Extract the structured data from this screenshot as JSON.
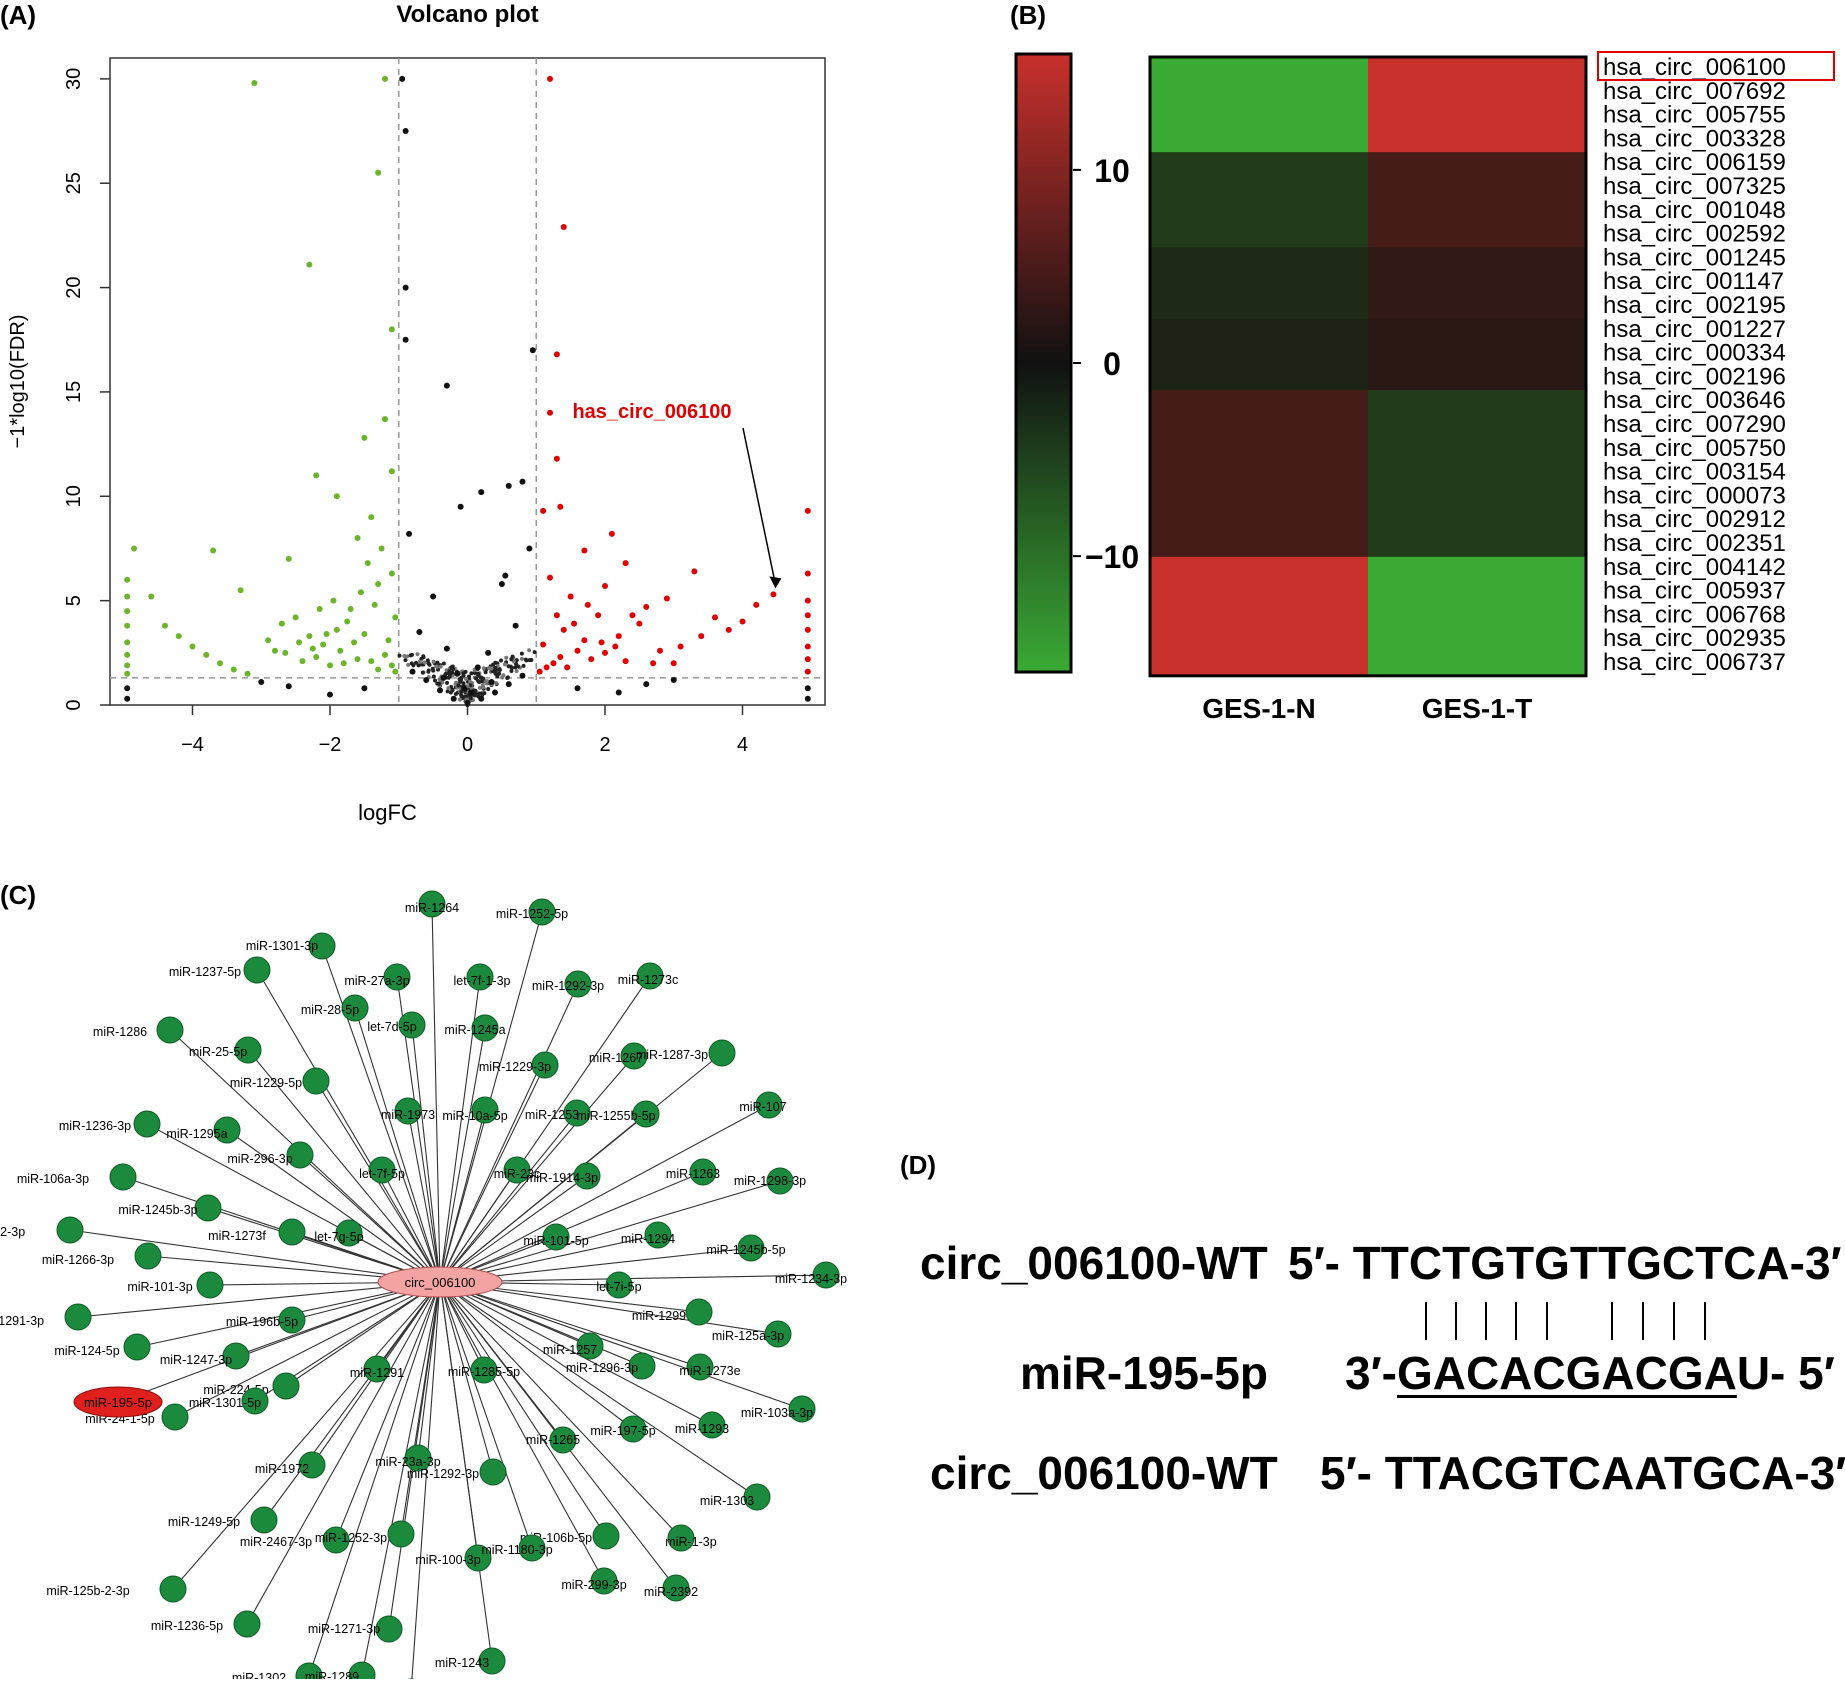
{
  "panels": {
    "a": {
      "label": "(A)",
      "title": "Volcano plot",
      "xlabel": "logFC",
      "ylabel": "−1*log10(FDR)",
      "xticks": [
        "−4",
        "−2",
        "0",
        "2",
        "4"
      ],
      "yticks": [
        "0",
        "5",
        "10",
        "15",
        "20",
        "25",
        "30"
      ],
      "annotation": "has_circ_006100"
    },
    "b": {
      "label": "(B)",
      "scale_ticks": [
        "10",
        "0",
        "−10"
      ],
      "columns": [
        "GES-1-N",
        "GES-1-T"
      ],
      "rows": [
        "hsa_circ_006100",
        "hsa_circ_007692",
        "hsa_circ_005755",
        "hsa_circ_003328",
        "hsa_circ_006159",
        "hsa_circ_007325",
        "hsa_circ_001048",
        "hsa_circ_002592",
        "hsa_circ_001245",
        "hsa_circ_001147",
        "hsa_circ_002195",
        "hsa_circ_001227",
        "hsa_circ_000334",
        "hsa_circ_002196",
        "hsa_circ_003646",
        "hsa_circ_007290",
        "hsa_circ_005750",
        "hsa_circ_003154",
        "hsa_circ_000073",
        "hsa_circ_002912",
        "hsa_circ_002351",
        "hsa_circ_004142",
        "hsa_circ_005937",
        "hsa_circ_006768",
        "hsa_circ_002935",
        "hsa_circ_006737"
      ]
    },
    "c": {
      "label": "(C)",
      "center": "circ_006100",
      "highlight": "miR-195-5p",
      "nodes": [
        "miR-1264",
        "miR-1252-5p",
        "miR-1301-3p",
        "miR-1237-5p",
        "miR-27a-3p",
        "let-7f-1-3p",
        "miR-1292-3p",
        "miR-1273c",
        "miR-28-5p",
        "miR-1286",
        "let-7d-5p",
        "miR-1245a",
        "miR-25-5p",
        "miR-1267",
        "miR-1287-3p",
        "miR-1229-3p",
        "miR-1229-5p",
        "miR-1973",
        "miR-10a-5p",
        "miR-1253",
        "miR-1255b-5p",
        "miR-107",
        "miR-1236-3p",
        "miR-1295a",
        "miR-296-3p",
        "let-7f-5p",
        "miR-23c",
        "miR-1914-3p",
        "miR-1263",
        "miR-106a-3p",
        "miR-1298-3p",
        "miR-1245b-3p",
        "miR-1255b-2-3p",
        "miR-1273f",
        "let-7g-5p",
        "miR-101-5p",
        "miR-1294",
        "miR-1245b-5p",
        "miR-1266-3p",
        "miR-101-3p",
        "let-7i-5p",
        "miR-1234-3p",
        "miR-1299",
        "miR-1291-3p",
        "miR-196b-5p",
        "miR-125a-3p",
        "miR-124-5p",
        "miR-1247-3p",
        "miR-1257",
        "miR-1296-3p",
        "miR-1273e",
        "miR-224-5p",
        "miR-1291",
        "miR-1285-5p",
        "miR-103a-3p",
        "miR-24-1-5p",
        "miR-1301-5p",
        "miR-197-5p",
        "miR-1293",
        "miR-1972",
        "miR-23a-3p",
        "miR-1292-3p",
        "miR-1265",
        "miR-1249-5p",
        "miR-2467-3p",
        "miR-1252-3p",
        "miR-106b-5p",
        "miR-1-3p",
        "miR-1303",
        "miR-125b-2-3p",
        "miR-100-3p",
        "miR-1180-3p",
        "miR-299-3p",
        "miR-2392",
        "miR-1236-5p",
        "miR-1271-3p",
        "miR-1302",
        "miR-1243",
        "miR-1251-5p",
        "miR-1289"
      ]
    },
    "d": {
      "label": "(D)",
      "row1_name": "circ_006100-WT",
      "row1_seq": "5′- TTCTGTGTTGCTCA-3′",
      "row2_name": "miR-195-5p",
      "row2_prefix": "3′-",
      "row2_underlined": "GACACGACGA",
      "row2_suffix": "U- 5′",
      "row3_name": "circ_006100-WT",
      "row3_seq": "5′- TTACGTCAATGCA-3′"
    }
  },
  "colors": {
    "up": "#e00000",
    "down": "#6cb42a",
    "ns": "#111111",
    "heat_red": "#c8302c",
    "heat_green": "#3aaa35",
    "node_green": "#1b8a3c",
    "center_fill": "#f4a3a3",
    "highlight_fill": "#e0201c",
    "box_red": "#e00000"
  },
  "chart_data": [
    {
      "type": "scatter",
      "title": "Volcano plot",
      "xlabel": "logFC",
      "ylabel": "−1*log10(FDR)",
      "xlim": [
        -5.2,
        5.2
      ],
      "ylim": [
        0,
        31
      ],
      "thresholds": {
        "logFC": [
          -1,
          1
        ],
        "neg_log10_fdr": 1.3
      },
      "series": [
        {
          "color": "#6cb42a",
          "points": [
            [
              -3.1,
              29.8
            ],
            [
              -1.2,
              30
            ],
            [
              -1.3,
              25.5
            ],
            [
              -2.3,
              21.1
            ],
            [
              -1.1,
              18
            ],
            [
              -1.2,
              13.7
            ],
            [
              -1.5,
              12.8
            ],
            [
              -2.2,
              11
            ],
            [
              -1.1,
              11.2
            ],
            [
              -1.9,
              10
            ],
            [
              -1.4,
              9
            ],
            [
              -1.6,
              8
            ],
            [
              -3.7,
              7.4
            ],
            [
              -4.85,
              7.5
            ],
            [
              -3.3,
              5.5
            ],
            [
              -2.6,
              7
            ],
            [
              -4.6,
              5.2
            ],
            [
              -4.4,
              3.8
            ],
            [
              -4.2,
              3.3
            ],
            [
              -4.0,
              2.8
            ],
            [
              -3.8,
              2.4
            ],
            [
              -3.6,
              2.0
            ],
            [
              -3.4,
              1.7
            ],
            [
              -3.2,
              1.5
            ],
            [
              -2.9,
              3.1
            ],
            [
              -2.7,
              3.9
            ],
            [
              -2.5,
              4.2
            ],
            [
              -2.3,
              3.3
            ],
            [
              -2.1,
              2.9
            ],
            [
              -1.9,
              3.6
            ],
            [
              -1.7,
              4.6
            ],
            [
              -1.5,
              3.4
            ],
            [
              -1.3,
              5.8
            ],
            [
              -1.1,
              6.3
            ],
            [
              -1.05,
              4.2
            ],
            [
              -1.2,
              2.4
            ],
            [
              -1.4,
              2.1
            ],
            [
              -1.6,
              2.2
            ],
            [
              -1.8,
              2.0
            ],
            [
              -2.0,
              1.9
            ],
            [
              -2.2,
              2.3
            ],
            [
              -2.4,
              2.1
            ],
            [
              -2.8,
              2.6
            ],
            [
              -1.15,
              3.1
            ],
            [
              -1.35,
              4.8
            ],
            [
              -1.55,
              5.4
            ],
            [
              -1.75,
              4.0
            ],
            [
              -1.95,
              5.0
            ],
            [
              -2.15,
              4.6
            ],
            [
              -1.25,
              7.5
            ],
            [
              -1.45,
              6.8
            ],
            [
              -1.65,
              3.0
            ],
            [
              -1.85,
              2.6
            ],
            [
              -2.05,
              3.4
            ],
            [
              -2.25,
              2.7
            ],
            [
              -2.45,
              3.0
            ],
            [
              -2.65,
              2.5
            ],
            [
              -1.05,
              1.6
            ],
            [
              -1.1,
              1.9
            ],
            [
              -1.3,
              1.7
            ],
            [
              -4.95,
              6.0
            ],
            [
              -4.95,
              5.2
            ],
            [
              -4.95,
              4.5
            ],
            [
              -4.95,
              3.8
            ],
            [
              -4.95,
              3.0
            ],
            [
              -4.95,
              2.4
            ],
            [
              -4.95,
              1.9
            ],
            [
              -4.95,
              1.5
            ]
          ]
        },
        {
          "color": "#e00000",
          "points": [
            [
              1.2,
              30
            ],
            [
              1.4,
              22.9
            ],
            [
              1.3,
              16.8
            ],
            [
              1.2,
              14
            ],
            [
              1.3,
              11.8
            ],
            [
              1.1,
              9.3
            ],
            [
              1.35,
              9.5
            ],
            [
              4.95,
              9.3
            ],
            [
              4.95,
              6.3
            ],
            [
              4.95,
              5.0
            ],
            [
              4.95,
              4.3
            ],
            [
              4.95,
              3.6
            ],
            [
              4.95,
              2.8
            ],
            [
              4.95,
              2.2
            ],
            [
              4.95,
              1.6
            ],
            [
              4.45,
              5.3
            ],
            [
              3.3,
              6.4
            ],
            [
              2.1,
              8.2
            ],
            [
              1.7,
              7.4
            ],
            [
              2.3,
              6.8
            ],
            [
              2.0,
              5.7
            ],
            [
              2.9,
              5.1
            ],
            [
              2.6,
              4.7
            ],
            [
              3.6,
              4.2
            ],
            [
              4.0,
              4.0
            ],
            [
              4.2,
              4.8
            ],
            [
              3.8,
              3.6
            ],
            [
              3.4,
              3.3
            ],
            [
              3.1,
              2.8
            ],
            [
              2.8,
              2.6
            ],
            [
              2.5,
              3.9
            ],
            [
              2.2,
              3.3
            ],
            [
              1.9,
              4.3
            ],
            [
              1.7,
              3.1
            ],
            [
              1.5,
              5.2
            ],
            [
              1.3,
              4.3
            ],
            [
              1.1,
              2.9
            ],
            [
              1.2,
              6.1
            ],
            [
              1.4,
              3.6
            ],
            [
              1.6,
              2.6
            ],
            [
              1.8,
              2.2
            ],
            [
              2.0,
              2.5
            ],
            [
              2.3,
              2.1
            ],
            [
              2.7,
              2.0
            ],
            [
              3.0,
              2.0
            ],
            [
              1.15,
              1.8
            ],
            [
              1.35,
              2.3
            ],
            [
              1.55,
              3.9
            ],
            [
              1.75,
              4.8
            ],
            [
              1.95,
              3.0
            ],
            [
              2.15,
              2.8
            ],
            [
              2.4,
              4.3
            ],
            [
              1.05,
              1.6
            ],
            [
              1.25,
              2.0
            ],
            [
              1.45,
              1.8
            ]
          ]
        },
        {
          "color": "#111111",
          "points": [
            [
              0,
              0.1
            ],
            [
              0.2,
              0.3
            ],
            [
              -0.2,
              0.3
            ],
            [
              0.4,
              0.6
            ],
            [
              -0.4,
              0.7
            ],
            [
              0.6,
              1.0
            ],
            [
              -0.6,
              1.2
            ],
            [
              0.8,
              1.4
            ],
            [
              -0.8,
              1.6
            ],
            [
              0.3,
              2.5
            ],
            [
              -0.3,
              2.7
            ],
            [
              -0.7,
              3.5
            ],
            [
              0.7,
              3.8
            ],
            [
              -0.5,
              5.2
            ],
            [
              0.5,
              5.8
            ],
            [
              -0.3,
              15.3
            ],
            [
              -0.9,
              17.5
            ],
            [
              -0.9,
              20
            ],
            [
              -0.95,
              30
            ],
            [
              -0.9,
              27.5
            ],
            [
              0.95,
              17
            ],
            [
              0.6,
              10.5
            ],
            [
              0.8,
              10.7
            ],
            [
              0.2,
              10.2
            ],
            [
              -0.1,
              9.5
            ],
            [
              0.55,
              6.2
            ],
            [
              -0.85,
              8.2
            ],
            [
              0.9,
              7.5
            ],
            [
              -1.5,
              0.8
            ],
            [
              -2.0,
              0.5
            ],
            [
              -2.6,
              0.9
            ],
            [
              -3.0,
              1.1
            ],
            [
              1.6,
              0.8
            ],
            [
              2.2,
              0.6
            ],
            [
              2.6,
              1.0
            ],
            [
              3.0,
              1.2
            ],
            [
              -4.95,
              0.8
            ],
            [
              -4.95,
              0.3
            ],
            [
              4.95,
              0.8
            ],
            [
              4.95,
              0.3
            ],
            [
              -0.15,
              1.5
            ],
            [
              0.15,
              1.8
            ],
            [
              0.35,
              1.1
            ],
            [
              -0.35,
              1.3
            ],
            [
              0.05,
              0.6
            ],
            [
              -0.05,
              0.8
            ]
          ]
        }
      ],
      "annotation": {
        "text": "has_circ_006100",
        "point": [
          4.45,
          5.3
        ]
      }
    },
    {
      "type": "heatmap",
      "columns": [
        "GES-1-N",
        "GES-1-T"
      ],
      "row_labels": [
        "hsa_circ_006100",
        "hsa_circ_007692",
        "hsa_circ_005755",
        "hsa_circ_003328",
        "hsa_circ_006159",
        "hsa_circ_007325",
        "hsa_circ_001048",
        "hsa_circ_002592",
        "hsa_circ_001245",
        "hsa_circ_001147",
        "hsa_circ_002195",
        "hsa_circ_001227",
        "hsa_circ_000334",
        "hsa_circ_002196",
        "hsa_circ_003646",
        "hsa_circ_007290",
        "hsa_circ_005750",
        "hsa_circ_003154",
        "hsa_circ_000073",
        "hsa_circ_002912",
        "hsa_circ_002351",
        "hsa_circ_004142",
        "hsa_circ_005937",
        "hsa_circ_006768",
        "hsa_circ_002935",
        "hsa_circ_006737"
      ],
      "values": [
        [
          -14,
          14
        ],
        [
          -14,
          14
        ],
        [
          -14,
          14
        ],
        [
          -14,
          14
        ],
        [
          -3,
          3
        ],
        [
          -3,
          3
        ],
        [
          -3,
          3
        ],
        [
          -3,
          3
        ],
        [
          -1.5,
          1.5
        ],
        [
          -1.5,
          1.5
        ],
        [
          -1.5,
          1.5
        ],
        [
          -1,
          1
        ],
        [
          -1,
          1
        ],
        [
          -1,
          1
        ],
        [
          3,
          -3
        ],
        [
          3,
          -3
        ],
        [
          3,
          -3
        ],
        [
          3,
          -3
        ],
        [
          3,
          -3
        ],
        [
          3,
          -3
        ],
        [
          3,
          -3
        ],
        [
          14,
          -14
        ],
        [
          14,
          -14
        ],
        [
          14,
          -14
        ],
        [
          14,
          -14
        ],
        [
          14,
          -14
        ]
      ],
      "color_scale": {
        "min": -16,
        "max": 16,
        "ticks": [
          10,
          0,
          -10
        ]
      }
    }
  ]
}
